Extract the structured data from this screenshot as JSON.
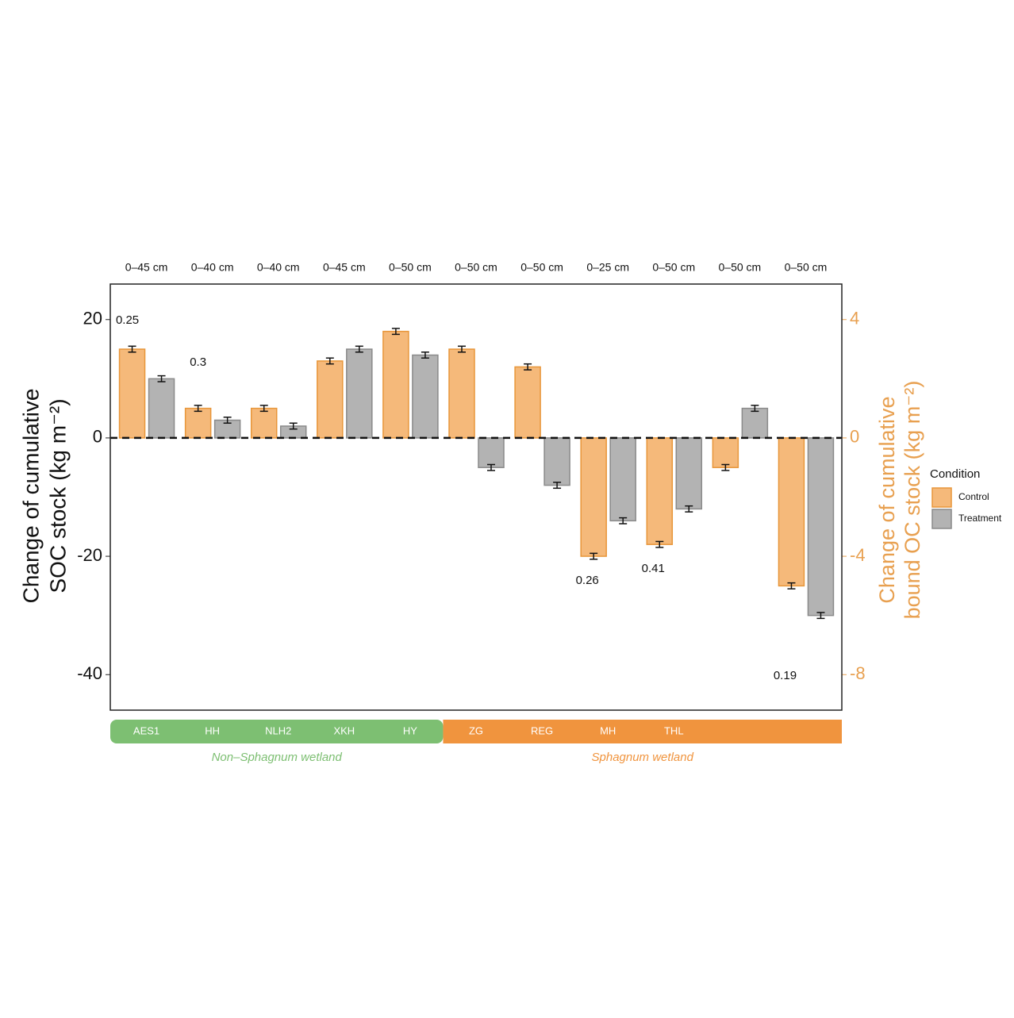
{
  "chart_data": {
    "type": "bar",
    "y_label": [
      "Change of cumulative",
      "SOC stock (kg m⁻²)"
    ],
    "y2_label": [
      "Change of cumulative",
      "bound OC stock (kg m⁻²)"
    ],
    "categories": [
      "AES1",
      "HH",
      "NLH2",
      "XKH",
      "HY",
      "ZG",
      "REG",
      "MH",
      "THL",
      null,
      null
    ],
    "depths": [
      "0–45 cm",
      "0–40 cm",
      "0–40 cm",
      "0–45 cm",
      "0–50 cm",
      "0–50 cm",
      "0–50 cm",
      "0–25 cm",
      "0–50 cm",
      "0–50 cm",
      "0–50 cm"
    ],
    "annotations": [
      "0.25",
      "0.3",
      null,
      null,
      null,
      null,
      null,
      "0.26",
      "0.41",
      null,
      "0.19"
    ],
    "groups": [
      {
        "name": "Non–Sphagnum wetland",
        "color": "#7dbf72",
        "size": 5
      },
      {
        "name": "Sphagnum wetland",
        "color": "#f0943e",
        "size": 6
      }
    ],
    "legend_title": "Condition",
    "series": [
      {
        "name": "Control",
        "color": "#f5b97a",
        "stroke": "#e8963a",
        "values": [
          15,
          5,
          5,
          13,
          18,
          15,
          12,
          -20,
          -18,
          -5,
          -25
        ],
        "error": [
          0.5,
          0.5,
          0.5,
          0.5,
          0.5,
          0.5,
          0.5,
          0.5,
          0.5,
          0.5,
          0.5
        ]
      },
      {
        "name": "Treatment",
        "color": "#b3b3b3",
        "stroke": "#8a8a8a",
        "values": [
          10,
          3,
          2,
          15,
          14,
          -5,
          -8,
          -14,
          -12,
          5,
          -30
        ],
        "error": [
          0.5,
          0.5,
          0.5,
          0.5,
          0.5,
          0.5,
          0.5,
          0.5,
          0.5,
          0.5,
          0.5
        ]
      }
    ],
    "ylim": [
      -46,
      26
    ],
    "yticks": [
      -40,
      -20,
      0,
      20
    ],
    "y2lim": [
      -9.2,
      5.2
    ],
    "y2ticks": [
      -8,
      -4,
      0,
      4
    ],
    "y2_color": "#e8a050"
  }
}
